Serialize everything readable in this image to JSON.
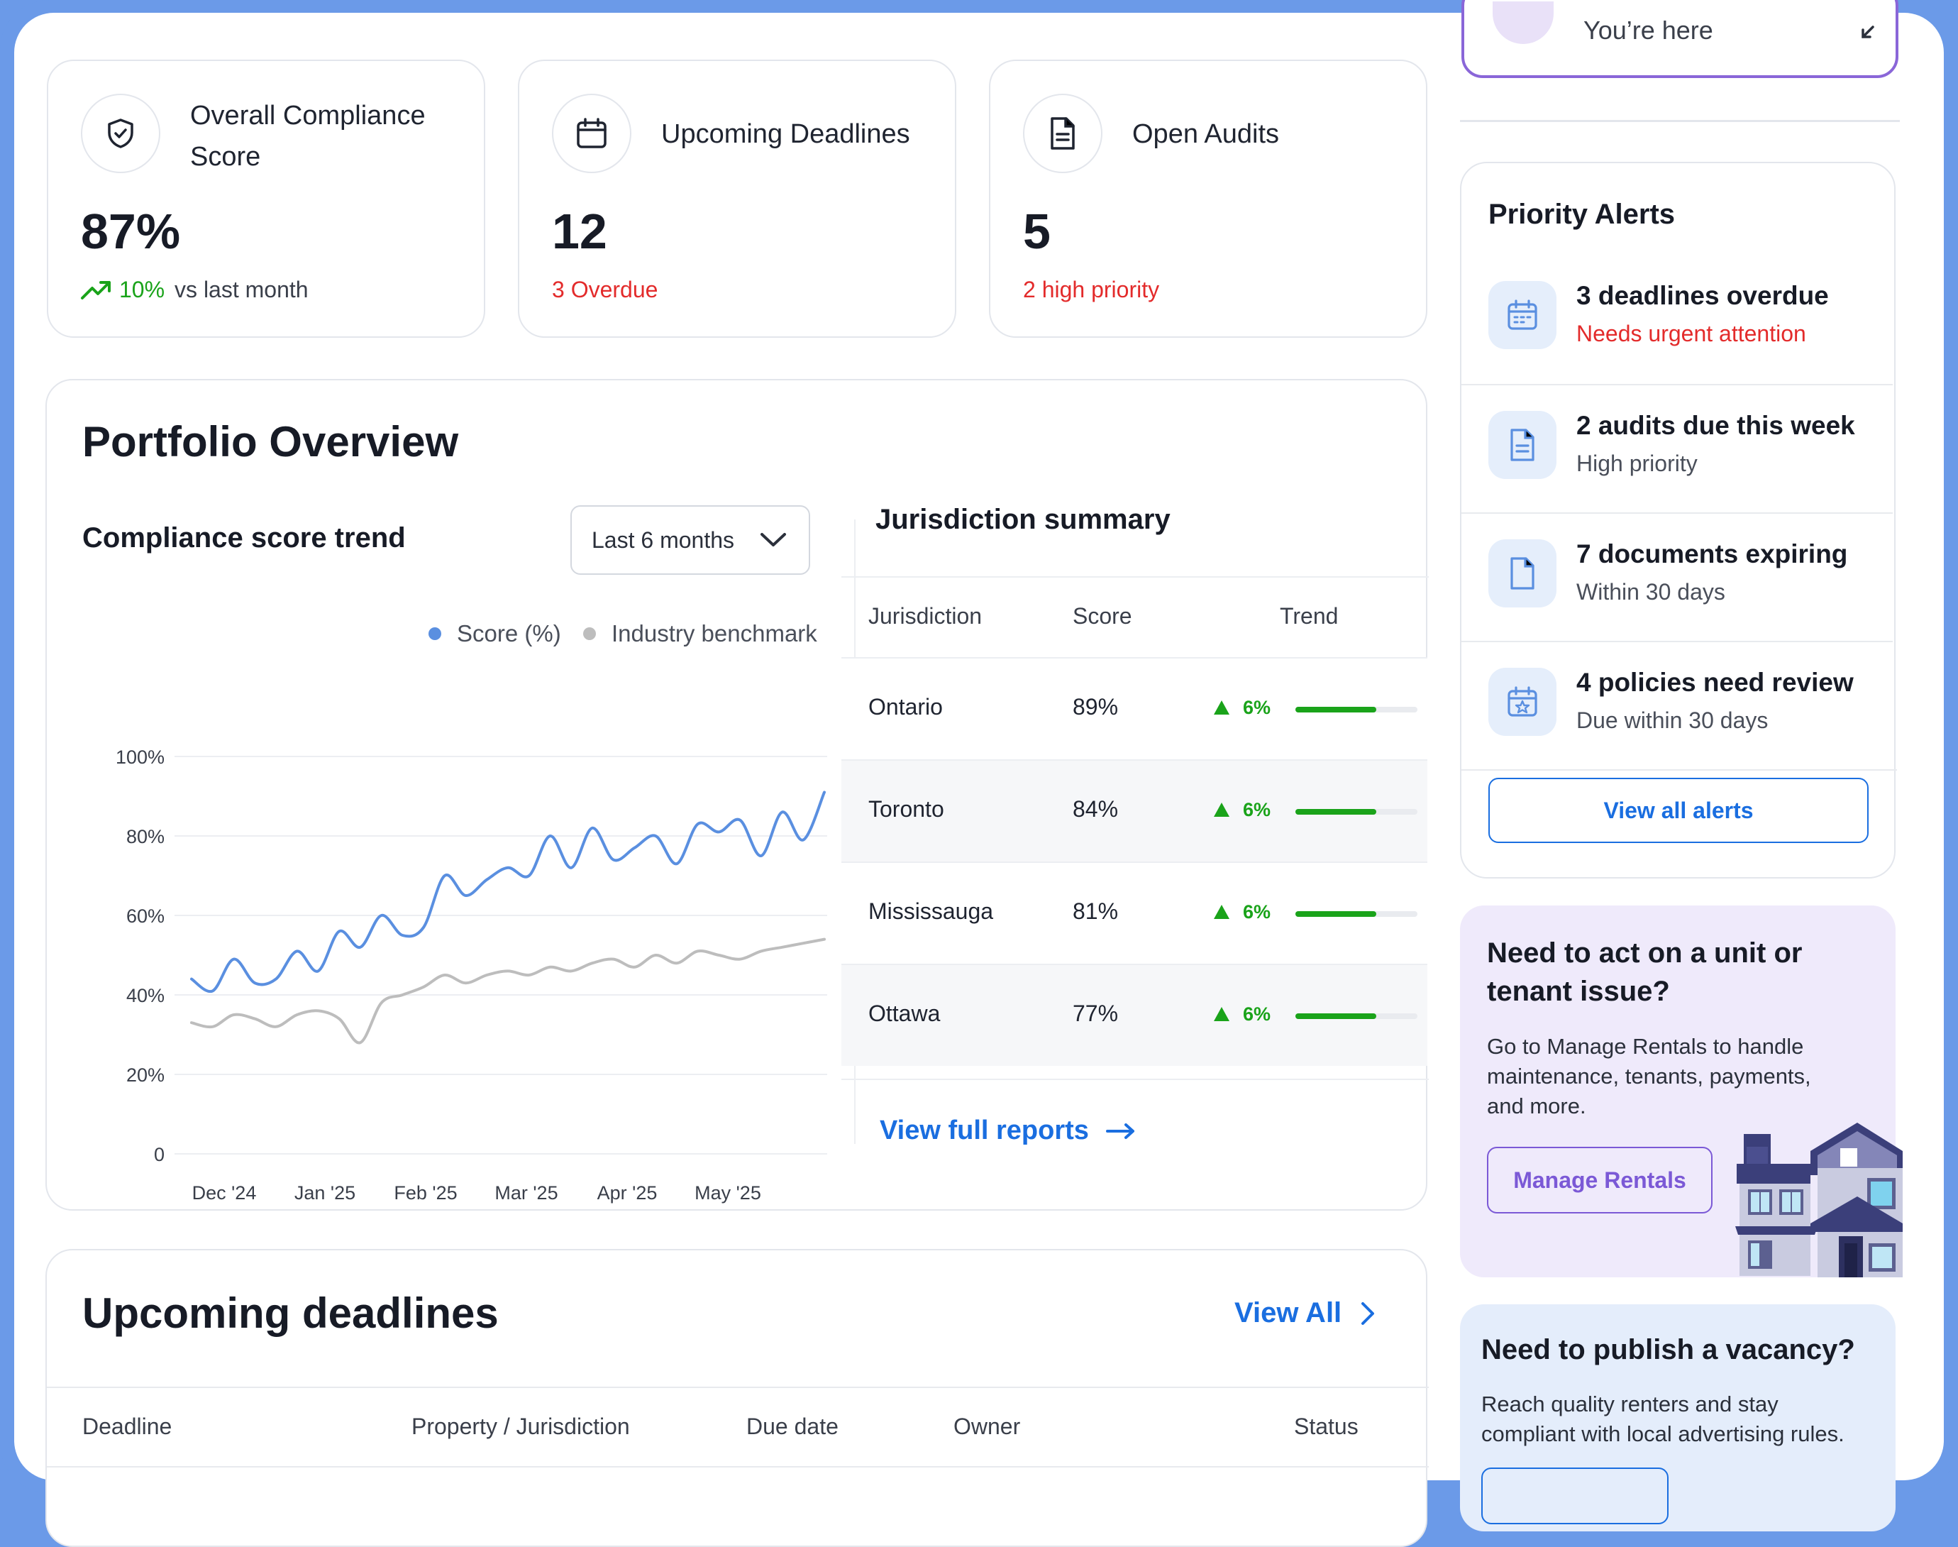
{
  "top_banner": {
    "you_are_here": "You’re here"
  },
  "stats": [
    {
      "title_line1": "Overall Compliance",
      "title_line2": "Score",
      "icon": "shield-check-icon",
      "value": "87%",
      "change": "10%",
      "change_suffix": "vs last month"
    },
    {
      "title": "Upcoming Deadlines",
      "icon": "calendar-icon",
      "value": "12",
      "sub": "3 Overdue"
    },
    {
      "title": "Open Audits",
      "icon": "document-icon",
      "value": "5",
      "sub": "2 high priority"
    }
  ],
  "portfolio": {
    "title": "Portfolio Overview",
    "trend_title": "Compliance score trend",
    "range_select": "Last 6 months",
    "legend_score": "Score (%)",
    "legend_benchmark": "Industry benchmark",
    "juris_title": "Jurisdiction summary",
    "juris_headers": [
      "Jurisdiction",
      "Score",
      "Trend"
    ],
    "juris_rows": [
      {
        "name": "Ontario",
        "score": "89%",
        "trend": "6%",
        "bar": 0.66
      },
      {
        "name": "Toronto",
        "score": "84%",
        "trend": "6%",
        "bar": 0.66
      },
      {
        "name": "Mississauga",
        "score": "81%",
        "trend": "6%",
        "bar": 0.66
      },
      {
        "name": "Ottawa",
        "score": "77%",
        "trend": "6%",
        "bar": 0.66
      }
    ],
    "view_reports": "View full reports"
  },
  "chart_data": {
    "type": "line",
    "title": "Compliance score trend",
    "y_ticks": [
      "100%",
      "80%",
      "60%",
      "40%",
      "20%",
      "0"
    ],
    "ylim": [
      0,
      100
    ],
    "x_ticks": [
      "Dec '24",
      "Jan '25",
      "Feb '25",
      "Mar '25",
      "Apr '25",
      "May '25"
    ],
    "legend_placement": "top-right",
    "colors": {
      "score": "#5a8fe0",
      "benchmark": "#bdbdbd"
    },
    "series": [
      {
        "name": "Score (%)",
        "values": [
          44,
          41,
          49,
          43,
          44,
          51,
          46,
          56,
          52,
          60,
          55,
          57,
          70,
          65,
          69,
          72,
          70,
          80,
          72,
          82,
          74,
          77,
          80,
          73,
          83,
          81,
          84,
          75,
          86,
          79,
          91
        ]
      },
      {
        "name": "Industry benchmark",
        "values": [
          33,
          32,
          35,
          34,
          32,
          35,
          36,
          34,
          28,
          38,
          40,
          42,
          45,
          43,
          45,
          46,
          45,
          47,
          46,
          48,
          49,
          47,
          50,
          48,
          51,
          50,
          49,
          51,
          52,
          53,
          54
        ]
      }
    ]
  },
  "alerts": {
    "title": "Priority Alerts",
    "items": [
      {
        "title": "3 deadlines overdue",
        "sub": "Needs urgent attention",
        "icon": "calendar-icon",
        "urgent": true
      },
      {
        "title": "2 audits due this week",
        "sub": "High priority",
        "icon": "document-icon",
        "urgent": false
      },
      {
        "title": "7 documents expiring",
        "sub": "Within 30 days",
        "icon": "file-icon",
        "urgent": false
      },
      {
        "title": "4 policies need review",
        "sub": "Due within 30 days",
        "icon": "calendar-star-icon",
        "urgent": false
      }
    ],
    "view_all": "View all alerts"
  },
  "promo_rentals": {
    "title_line1": "Need to act on a unit or",
    "title_line2": "tenant issue?",
    "body_line1": "Go to Manage Rentals to handle",
    "body_line2": "maintenance, tenants, payments,",
    "body_line3": "and more.",
    "button": "Manage Rentals",
    "colors": {
      "bg": "#efeafb",
      "accent": "#7b59d6"
    }
  },
  "promo_vacancy": {
    "title": "Need to publish a vacancy?",
    "body_line1": "Reach quality renters and stay",
    "body_line2": "compliant with local advertising rules.",
    "colors": {
      "bg": "#e4edfb"
    }
  },
  "deadlines": {
    "title": "Upcoming deadlines",
    "view_all": "View All",
    "headers": [
      "Deadline",
      "Property / Jurisdiction",
      "Due date",
      "Owner",
      "Status"
    ]
  }
}
